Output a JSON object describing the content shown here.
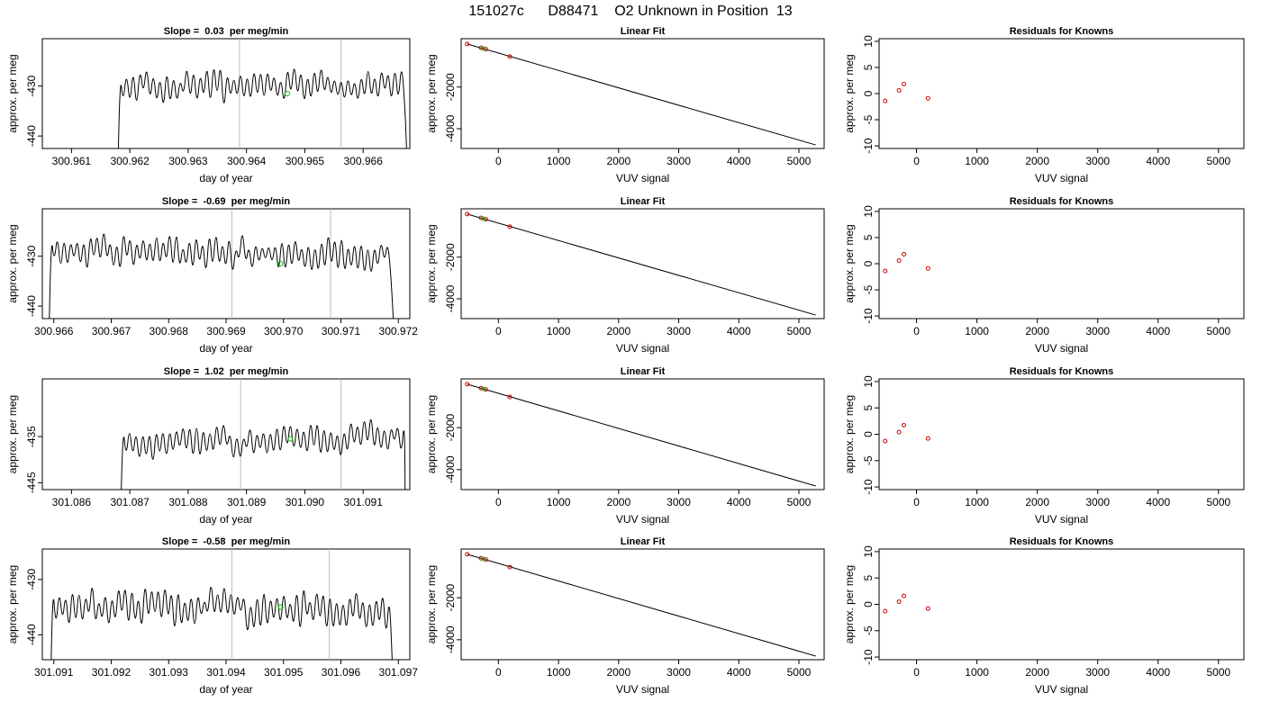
{
  "figure_title": "151027c      D88471    O2 Unknown in Position  13",
  "colors": {
    "trace": "#000000",
    "marker_line": "#bbbbbb",
    "known_point": "#cc0000",
    "unknown_point": "#00bb00"
  },
  "chart_data": [
    {
      "type": "line",
      "row": 1,
      "title": "Slope =  0.03  per meg/min",
      "xlabel": "day of year",
      "ylabel": "approx. per meg",
      "xlim": [
        300.9605,
        300.9668
      ],
      "ylim": [
        -442.5,
        -420.5
      ],
      "xticks": [
        "300.961",
        "300.962",
        "300.963",
        "300.964",
        "300.965",
        "300.966"
      ],
      "yticks": [
        "-430",
        "-440"
      ],
      "vlines": [
        300.96388,
        300.96562
      ],
      "trace": {
        "start": 300.9618,
        "end": 300.96675,
        "base": -430.5,
        "amp": 4.5,
        "period": 0.000115,
        "drift": 0.8,
        "seed": 3
      },
      "unknown_point": [
        300.9647,
        -431.5
      ]
    },
    {
      "type": "scatter",
      "row": 1,
      "title": "Linear Fit",
      "xlabel": "VUV signal",
      "ylabel": "approx. per meg",
      "xlim": [
        -620,
        5420
      ],
      "ylim": [
        -4950,
        320
      ],
      "xticks": [
        "0",
        "1000",
        "2000",
        "3000",
        "4000",
        "5000"
      ],
      "yticks": [
        "-2000",
        "-4000"
      ],
      "fit_line": {
        "x": [
          -520,
          5280
        ],
        "y": [
          68,
          -4780
        ]
      },
      "knowns": [
        {
          "x": -520,
          "y": 68
        },
        {
          "x": -290,
          "y": -118
        },
        {
          "x": -210,
          "y": -182
        },
        {
          "x": 190,
          "y": -540
        }
      ],
      "unknown": {
        "x": -250,
        "y": -152
      }
    },
    {
      "type": "scatter",
      "row": 1,
      "title": "Residuals for Knowns",
      "xlabel": "VUV signal",
      "ylabel": "approx. per meg",
      "xlim": [
        -620,
        5420
      ],
      "ylim": [
        -10.5,
        10.5
      ],
      "xticks": [
        "0",
        "1000",
        "2000",
        "3000",
        "4000",
        "5000"
      ],
      "yticks": [
        "-10",
        "-5",
        "0",
        "5",
        "10"
      ],
      "residuals": [
        {
          "x": -520,
          "y": -1.4
        },
        {
          "x": -290,
          "y": 0.6
        },
        {
          "x": -210,
          "y": 1.8
        },
        {
          "x": 190,
          "y": -0.9
        }
      ]
    },
    {
      "type": "line",
      "row": 2,
      "title": "Slope =  -0.69  per meg/min",
      "xlabel": "day of year",
      "ylabel": "approx. per meg",
      "xlim": [
        300.9658,
        300.9722
      ],
      "ylim": [
        -442.5,
        -420.5
      ],
      "xticks": [
        "300.966",
        "300.967",
        "300.968",
        "300.969",
        "300.970",
        "300.971",
        "300.972"
      ],
      "yticks": [
        "-430",
        "-440"
      ],
      "vlines": [
        300.9691,
        300.97082
      ],
      "trace": {
        "start": 300.96592,
        "end": 300.97192,
        "base": -428.5,
        "amp": 4.5,
        "period": 0.000115,
        "drift": -1.5,
        "seed": 7
      },
      "unknown_point": [
        300.96995,
        -431.5
      ]
    },
    {
      "type": "scatter",
      "row": 2,
      "title": "Linear Fit",
      "xlabel": "VUV signal",
      "ylabel": "approx. per meg",
      "xlim": [
        -620,
        5420
      ],
      "ylim": [
        -4950,
        320
      ],
      "xticks": [
        "0",
        "1000",
        "2000",
        "3000",
        "4000",
        "5000"
      ],
      "yticks": [
        "-2000",
        "-4000"
      ],
      "fit_line": {
        "x": [
          -520,
          5280
        ],
        "y": [
          68,
          -4780
        ]
      },
      "knowns": [
        {
          "x": -520,
          "y": 68
        },
        {
          "x": -290,
          "y": -118
        },
        {
          "x": -210,
          "y": -182
        },
        {
          "x": 190,
          "y": -540
        }
      ],
      "unknown": {
        "x": -250,
        "y": -152
      }
    },
    {
      "type": "scatter",
      "row": 2,
      "title": "Residuals for Knowns",
      "xlabel": "VUV signal",
      "ylabel": "approx. per meg",
      "xlim": [
        -620,
        5420
      ],
      "ylim": [
        -10.5,
        10.5
      ],
      "xticks": [
        "0",
        "1000",
        "2000",
        "3000",
        "4000",
        "5000"
      ],
      "yticks": [
        "-10",
        "-5",
        "0",
        "5",
        "10"
      ],
      "residuals": [
        {
          "x": -520,
          "y": -1.4
        },
        {
          "x": -290,
          "y": 0.6
        },
        {
          "x": -210,
          "y": 1.8
        },
        {
          "x": 190,
          "y": -0.9
        }
      ]
    },
    {
      "type": "line",
      "row": 3,
      "title": "Slope =  1.02  per meg/min",
      "xlabel": "day of year",
      "ylabel": "approx. per meg",
      "xlim": [
        301.0855,
        301.0918
      ],
      "ylim": [
        -446.5,
        -422.5
      ],
      "xticks": [
        "301.086",
        "301.087",
        "301.088",
        "301.089",
        "301.090",
        "301.091"
      ],
      "yticks": [
        "-435",
        "-445"
      ],
      "vlines": [
        301.0889,
        301.09062
      ],
      "trace": {
        "start": 301.08685,
        "end": 301.09172,
        "base": -437,
        "amp": 4.8,
        "period": 0.000115,
        "drift": 2.5,
        "seed": 11
      },
      "unknown_point": [
        301.08975,
        -435.5
      ]
    },
    {
      "type": "scatter",
      "row": 3,
      "title": "Linear Fit",
      "xlabel": "VUV signal",
      "ylabel": "approx. per meg",
      "xlim": [
        -620,
        5420
      ],
      "ylim": [
        -4950,
        320
      ],
      "xticks": [
        "0",
        "1000",
        "2000",
        "3000",
        "4000",
        "5000"
      ],
      "yticks": [
        "-2000",
        "-4000"
      ],
      "fit_line": {
        "x": [
          -520,
          5280
        ],
        "y": [
          68,
          -4780
        ]
      },
      "knowns": [
        {
          "x": -520,
          "y": 68
        },
        {
          "x": -290,
          "y": -118
        },
        {
          "x": -210,
          "y": -182
        },
        {
          "x": 190,
          "y": -540
        }
      ],
      "unknown": {
        "x": -250,
        "y": -152
      }
    },
    {
      "type": "scatter",
      "row": 3,
      "title": "Residuals for Knowns",
      "xlabel": "VUV signal",
      "ylabel": "approx. per meg",
      "xlim": [
        -620,
        5420
      ],
      "ylim": [
        -10.5,
        10.5
      ],
      "xticks": [
        "0",
        "1000",
        "2000",
        "3000",
        "4000",
        "5000"
      ],
      "yticks": [
        "-10",
        "-5",
        "0",
        "5",
        "10"
      ],
      "residuals": [
        {
          "x": -520,
          "y": -1.3
        },
        {
          "x": -290,
          "y": 0.4
        },
        {
          "x": -210,
          "y": 1.7
        },
        {
          "x": 190,
          "y": -0.8
        }
      ]
    },
    {
      "type": "line",
      "row": 4,
      "title": "Slope =  -0.58  per meg/min",
      "xlabel": "day of year",
      "ylabel": "approx. per meg",
      "xlim": [
        301.0908,
        301.0972
      ],
      "ylim": [
        -444.5,
        -424.5
      ],
      "xticks": [
        "301.091",
        "301.092",
        "301.093",
        "301.094",
        "301.095",
        "301.096",
        "301.097"
      ],
      "yticks": [
        "-430",
        "-440"
      ],
      "vlines": [
        301.0941,
        301.0958
      ],
      "trace": {
        "start": 301.09095,
        "end": 301.0969,
        "base": -434.5,
        "amp": 4.6,
        "period": 0.000115,
        "drift": -1.0,
        "seed": 19
      },
      "unknown_point": [
        301.09495,
        -435
      ]
    },
    {
      "type": "scatter",
      "row": 4,
      "title": "Linear Fit",
      "xlabel": "VUV signal",
      "ylabel": "approx. per meg",
      "xlim": [
        -620,
        5420
      ],
      "ylim": [
        -4950,
        320
      ],
      "xticks": [
        "0",
        "1000",
        "2000",
        "3000",
        "4000",
        "5000"
      ],
      "yticks": [
        "-2000",
        "-4000"
      ],
      "fit_line": {
        "x": [
          -520,
          5280
        ],
        "y": [
          68,
          -4780
        ]
      },
      "knowns": [
        {
          "x": -520,
          "y": 68
        },
        {
          "x": -290,
          "y": -118
        },
        {
          "x": -210,
          "y": -182
        },
        {
          "x": 190,
          "y": -540
        }
      ],
      "unknown": {
        "x": -250,
        "y": -152
      }
    },
    {
      "type": "scatter",
      "row": 4,
      "title": "Residuals for Knowns",
      "xlabel": "VUV signal",
      "ylabel": "approx. per meg",
      "xlim": [
        -620,
        5420
      ],
      "ylim": [
        -10.5,
        10.5
      ],
      "xticks": [
        "0",
        "1000",
        "2000",
        "3000",
        "4000",
        "5000"
      ],
      "yticks": [
        "-10",
        "-5",
        "0",
        "5",
        "10"
      ],
      "residuals": [
        {
          "x": -520,
          "y": -1.3
        },
        {
          "x": -290,
          "y": 0.5
        },
        {
          "x": -210,
          "y": 1.6
        },
        {
          "x": 190,
          "y": -0.8
        }
      ]
    }
  ]
}
